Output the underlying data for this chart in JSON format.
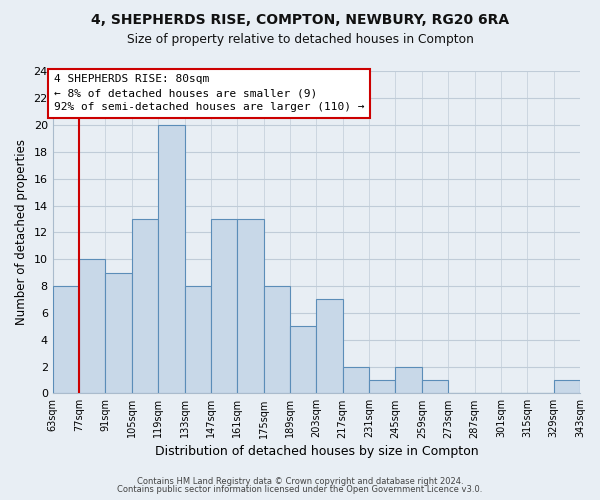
{
  "title": "4, SHEPHERDS RISE, COMPTON, NEWBURY, RG20 6RA",
  "subtitle": "Size of property relative to detached houses in Compton",
  "xlabel": "Distribution of detached houses by size in Compton",
  "ylabel": "Number of detached properties",
  "bin_labels": [
    "63sqm",
    "77sqm",
    "91sqm",
    "105sqm",
    "119sqm",
    "133sqm",
    "147sqm",
    "161sqm",
    "175sqm",
    "189sqm",
    "203sqm",
    "217sqm",
    "231sqm",
    "245sqm",
    "259sqm",
    "273sqm",
    "287sqm",
    "301sqm",
    "315sqm",
    "329sqm",
    "343sqm"
  ],
  "bar_heights": [
    8,
    10,
    9,
    13,
    20,
    8,
    13,
    13,
    8,
    5,
    7,
    2,
    1,
    2,
    1,
    0,
    0,
    0,
    0,
    1
  ],
  "bar_color": "#c8d8e8",
  "bar_edge_color": "#5b8db8",
  "ylim": [
    0,
    24
  ],
  "yticks": [
    0,
    2,
    4,
    6,
    8,
    10,
    12,
    14,
    16,
    18,
    20,
    22,
    24
  ],
  "property_line_color": "#cc0000",
  "annotation_text": "4 SHEPHERDS RISE: 80sqm\n← 8% of detached houses are smaller (9)\n92% of semi-detached houses are larger (110) →",
  "annotation_box_color": "#ffffff",
  "annotation_box_edge": "#cc0000",
  "footer_line1": "Contains HM Land Registry data © Crown copyright and database right 2024.",
  "footer_line2": "Contains public sector information licensed under the Open Government Licence v3.0.",
  "background_color": "#e8eef4",
  "plot_background": "#e8eef4",
  "grid_color": "#c0ccd8"
}
